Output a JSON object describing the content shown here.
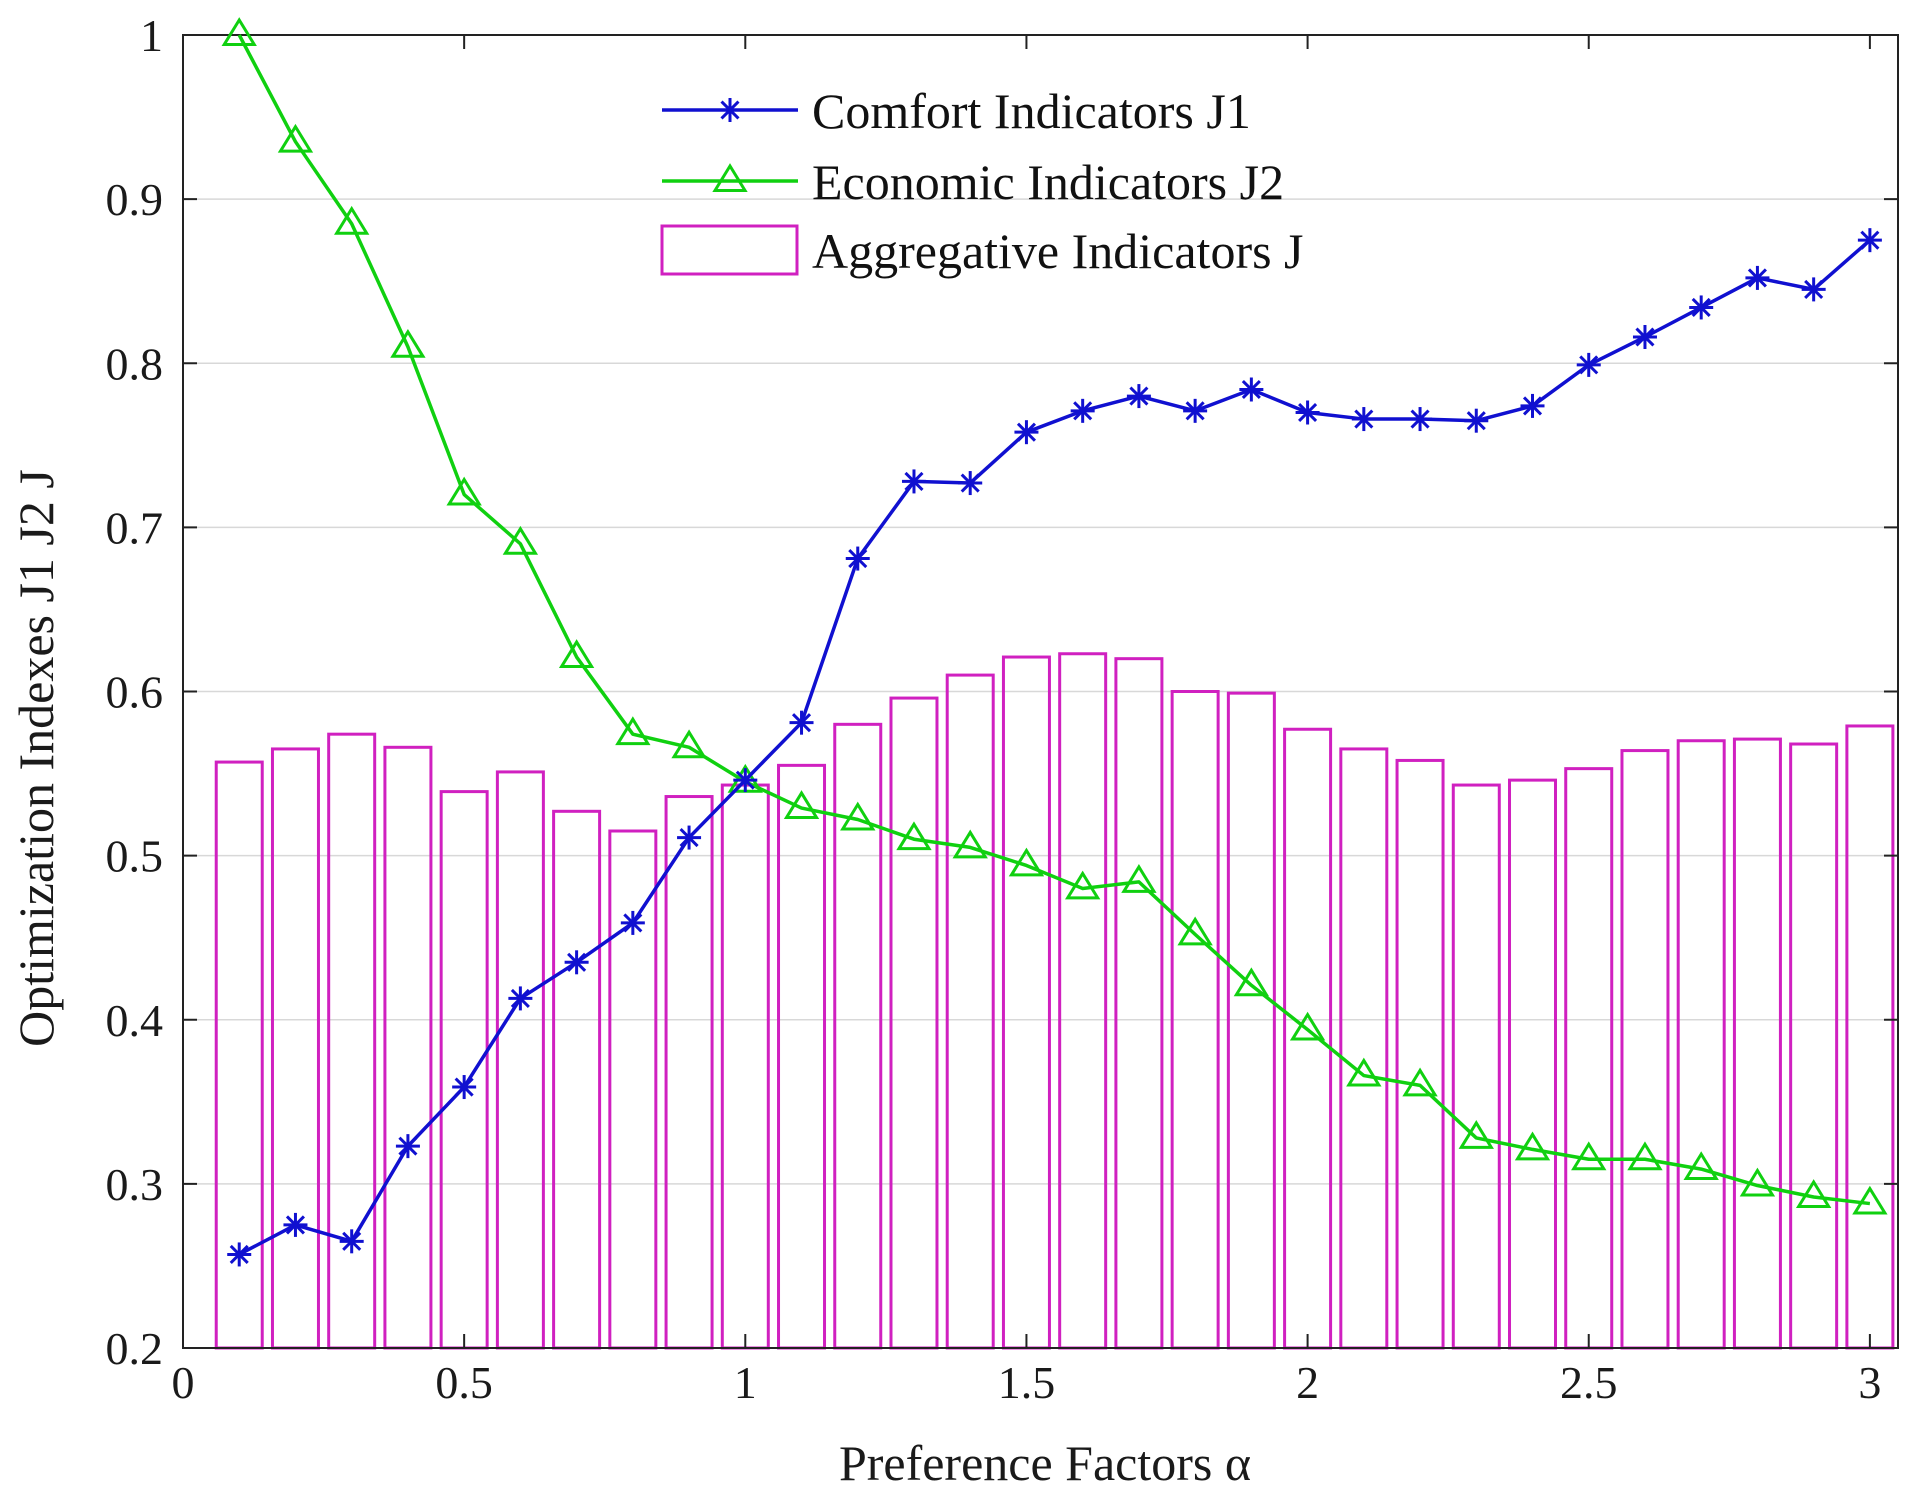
{
  "chart_data": {
    "type": "line+bar",
    "title": "",
    "xlabel": "Preference Factors α",
    "ylabel": "Optimization Indexes J1 J2 J",
    "xlim": [
      0,
      3.05
    ],
    "ylim": [
      0.2,
      1.0
    ],
    "xticks": [
      0,
      0.5,
      1,
      1.5,
      2,
      2.5,
      3
    ],
    "xtick_labels": [
      "0",
      "0.5",
      "1",
      "1.5",
      "2",
      "2.5",
      "3"
    ],
    "yticks": [
      0.2,
      0.3,
      0.4,
      0.5,
      0.6,
      0.7,
      0.8,
      0.9,
      1.0
    ],
    "ytick_labels": [
      "0.2",
      "0.3",
      "0.4",
      "0.5",
      "0.6",
      "0.7",
      "0.8",
      "0.9",
      "1"
    ],
    "grid": "horizontal",
    "legend_position": "top-center",
    "x": [
      0.1,
      0.2,
      0.3,
      0.4,
      0.5,
      0.6,
      0.7,
      0.8,
      0.9,
      1.0,
      1.1,
      1.2,
      1.3,
      1.4,
      1.5,
      1.6,
      1.7,
      1.8,
      1.9,
      2.0,
      2.1,
      2.2,
      2.3,
      2.4,
      2.5,
      2.6,
      2.7,
      2.8,
      2.9,
      3.0
    ],
    "series": [
      {
        "name": "Comfort Indicators J1",
        "kind": "line",
        "marker": "asterisk",
        "color": "#1010d0",
        "values": [
          0.257,
          0.275,
          0.265,
          0.323,
          0.359,
          0.413,
          0.435,
          0.459,
          0.511,
          0.546,
          0.581,
          0.681,
          0.728,
          0.727,
          0.758,
          0.771,
          0.78,
          0.771,
          0.784,
          0.77,
          0.766,
          0.766,
          0.765,
          0.774,
          0.799,
          0.816,
          0.834,
          0.852,
          0.845,
          0.875
        ]
      },
      {
        "name": "Economic Indicators J2",
        "kind": "line",
        "marker": "triangle",
        "color": "#10d010",
        "values": [
          1.0,
          0.935,
          0.885,
          0.81,
          0.72,
          0.69,
          0.621,
          0.574,
          0.566,
          0.545,
          0.529,
          0.522,
          0.51,
          0.505,
          0.494,
          0.48,
          0.484,
          0.452,
          0.421,
          0.394,
          0.366,
          0.36,
          0.328,
          0.321,
          0.315,
          0.315,
          0.309,
          0.299,
          0.292,
          0.288
        ]
      },
      {
        "name": "Aggregative Indicators J",
        "kind": "bar",
        "color": "#d020c0",
        "values": [
          0.557,
          0.565,
          0.574,
          0.566,
          0.539,
          0.551,
          0.527,
          0.515,
          0.536,
          0.543,
          0.555,
          0.58,
          0.596,
          0.61,
          0.621,
          0.623,
          0.62,
          0.6,
          0.599,
          0.577,
          0.565,
          0.558,
          0.543,
          0.546,
          0.553,
          0.564,
          0.57,
          0.571,
          0.568,
          0.579
        ]
      }
    ]
  }
}
